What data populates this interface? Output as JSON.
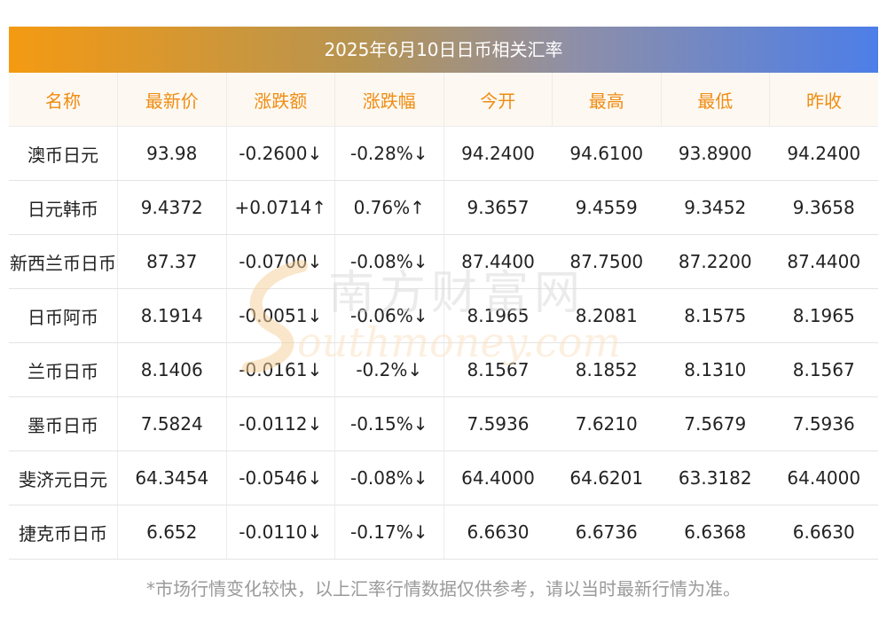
{
  "title": "2025年6月10日日币相关汇率",
  "headers": [
    "名称",
    "最新价",
    "涨跌额",
    "涨跌幅",
    "今开",
    "最高",
    "最低",
    "昨收"
  ],
  "colors": {
    "up": "#e8151b",
    "down": "#1a8a1a",
    "header_text": "#f08c12"
  },
  "rows": [
    {
      "name": "澳币日元",
      "latest": "93.98",
      "change": "-0.2600↓",
      "pct": "-0.28%↓",
      "open": "94.2400",
      "high": "94.6100",
      "low": "93.8900",
      "prev": "94.2400",
      "trend": "down"
    },
    {
      "name": "日元韩币",
      "latest": "9.4372",
      "change": "+0.0714↑",
      "pct": "0.76%↑",
      "open": "9.3657",
      "high": "9.4559",
      "low": "9.3452",
      "prev": "9.3658",
      "trend": "up"
    },
    {
      "name": "新西兰币日币",
      "latest": "87.37",
      "change": "-0.0700↓",
      "pct": "-0.08%↓",
      "open": "87.4400",
      "high": "87.7500",
      "low": "87.2200",
      "prev": "87.4400",
      "trend": "down"
    },
    {
      "name": "日币阿币",
      "latest": "8.1914",
      "change": "-0.0051↓",
      "pct": "-0.06%↓",
      "open": "8.1965",
      "high": "8.2081",
      "low": "8.1575",
      "prev": "8.1965",
      "trend": "down"
    },
    {
      "name": "兰币日币",
      "latest": "8.1406",
      "change": "-0.0161↓",
      "pct": "-0.2%↓",
      "open": "8.1567",
      "high": "8.1852",
      "low": "8.1310",
      "prev": "8.1567",
      "trend": "down"
    },
    {
      "name": "墨币日币",
      "latest": "7.5824",
      "change": "-0.0112↓",
      "pct": "-0.15%↓",
      "open": "7.5936",
      "high": "7.6210",
      "low": "7.5679",
      "prev": "7.5936",
      "trend": "down"
    },
    {
      "name": "斐济元日元",
      "latest": "64.3454",
      "change": "-0.0546↓",
      "pct": "-0.08%↓",
      "open": "64.4000",
      "high": "64.6201",
      "low": "63.3182",
      "prev": "64.4000",
      "trend": "down"
    },
    {
      "name": "捷克币日币",
      "latest": "6.652",
      "change": "-0.0110↓",
      "pct": "-0.17%↓",
      "open": "6.6630",
      "high": "6.6736",
      "low": "6.6368",
      "prev": "6.6630",
      "trend": "down"
    }
  ],
  "watermark": {
    "cn": "南方财富网",
    "en": "outhmoney.com"
  },
  "footnote": "*市场行情变化较快，以上汇率行情数据仅供参考，请以当时最新行情为准。"
}
